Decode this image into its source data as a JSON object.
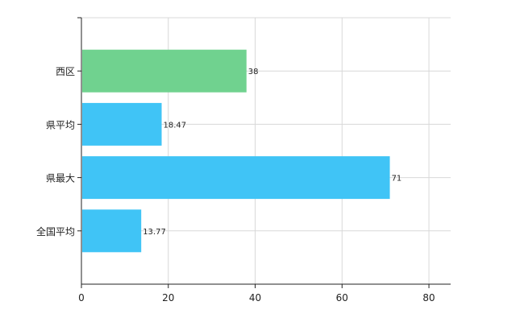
{
  "chart_data": {
    "type": "bar",
    "orientation": "horizontal",
    "categories": [
      "西区",
      "県平均",
      "県最大",
      "全国平均"
    ],
    "values": [
      38,
      18.47,
      71,
      13.77
    ],
    "data_labels": [
      "38",
      "18.47",
      "71",
      "13.77"
    ],
    "bar_colors": [
      "#70d28f",
      "#40c4f6",
      "#40c4f6",
      "#40c4f6"
    ],
    "xlim": [
      0,
      85
    ],
    "x_ticks": [
      0,
      20,
      40,
      60,
      80
    ],
    "x_tick_labels": [
      "0",
      "20",
      "40",
      "60",
      "80"
    ],
    "grid": true,
    "legend": "none"
  },
  "colors": {
    "grid": "#d8d8d8",
    "axis": "#222222",
    "text": "#222222"
  }
}
